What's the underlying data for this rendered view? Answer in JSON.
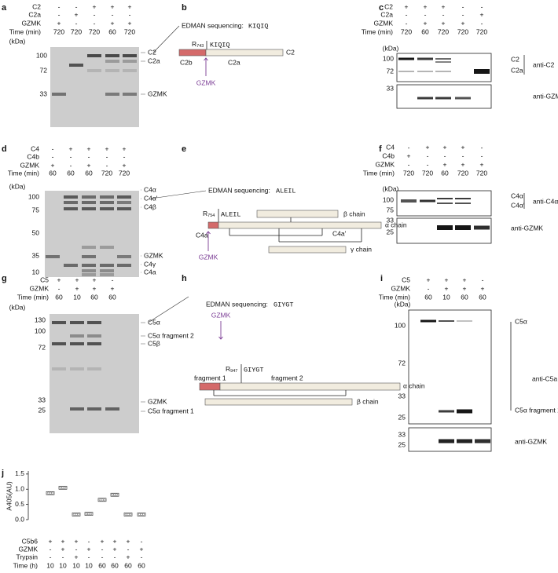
{
  "panels": {
    "a": {
      "letter": "a",
      "rows": [
        {
          "label": "C2",
          "cells": [
            "-",
            "-",
            "+",
            "+",
            "+"
          ]
        },
        {
          "label": "C2a",
          "cells": [
            "-",
            "+",
            "-",
            "-",
            "-"
          ]
        },
        {
          "label": "GZMK",
          "cells": [
            "+",
            "-",
            "-",
            "+",
            "+"
          ]
        },
        {
          "label": "Time (min)",
          "cells": [
            720,
            720,
            720,
            60,
            720
          ]
        }
      ],
      "kda": "(kDa)",
      "markers": [
        100,
        72,
        33
      ],
      "bands": [
        "C2",
        "C2a",
        "GZMK"
      ]
    },
    "b": {
      "letter": "b",
      "edman": "EDMAN sequencing:",
      "seq": "KIQIQ",
      "site": "R",
      "site_num": "743",
      "labels": [
        "C2b",
        "C2a",
        "C2"
      ],
      "enzyme": "GZMK"
    },
    "c": {
      "letter": "c",
      "rows": [
        {
          "label": "C2",
          "cells": [
            "+",
            "+",
            "+",
            "-",
            "-"
          ]
        },
        {
          "label": "C2a",
          "cells": [
            "-",
            "-",
            "-",
            "-",
            "+"
          ]
        },
        {
          "label": "GZMK",
          "cells": [
            "-",
            "+",
            "+",
            "+",
            "-"
          ]
        },
        {
          "label": "Time (min)",
          "cells": [
            720,
            60,
            720,
            720,
            720
          ]
        }
      ],
      "kda": "(kDa)",
      "blots": [
        {
          "markers": [
            100,
            72
          ],
          "bands": [
            "C2",
            "C2a"
          ],
          "antibody": "anti-C2"
        },
        {
          "markers": [
            33
          ],
          "bands": [],
          "antibody": "anti-GZMK"
        }
      ]
    },
    "d": {
      "letter": "d",
      "rows": [
        {
          "label": "C4",
          "cells": [
            "-",
            "+",
            "+",
            "+",
            "+"
          ]
        },
        {
          "label": "C4b",
          "cells": [
            "-",
            "-",
            "-",
            "-",
            "-"
          ]
        },
        {
          "label": "GZMK",
          "cells": [
            "+",
            "-",
            "+",
            "-",
            "+"
          ]
        },
        {
          "label": "Time (min)",
          "cells": [
            60,
            60,
            60,
            720,
            720
          ]
        }
      ],
      "kda": "(kDa)",
      "markers": [
        100,
        75,
        50,
        35,
        10
      ],
      "bands": [
        "C4α",
        "C4α'",
        "C4β",
        "GZMK",
        "C4γ",
        "C4a"
      ]
    },
    "e": {
      "letter": "e",
      "edman": "EDMAN sequencing:",
      "seq": "ALEIL",
      "site": "R",
      "site_num": "754",
      "chains": [
        "β chain",
        "α chain",
        "γ chain"
      ],
      "fragments": [
        "C4a",
        "C4a'"
      ],
      "enzyme": "GZMK"
    },
    "f": {
      "letter": "f",
      "rows": [
        {
          "label": "C4",
          "cells": [
            "-",
            "+",
            "+",
            "+",
            "-"
          ]
        },
        {
          "label": "C4b",
          "cells": [
            "+",
            "-",
            "-",
            "-",
            "-"
          ]
        },
        {
          "label": "GZMK",
          "cells": [
            "-",
            "-",
            "+",
            "+",
            "+"
          ]
        },
        {
          "label": "Time (min)",
          "cells": [
            720,
            720,
            60,
            720,
            720
          ]
        }
      ],
      "kda": "(kDa)",
      "blots": [
        {
          "markers": [
            100,
            75
          ],
          "bands": [
            "C4α",
            "C4α'"
          ],
          "antibody": "anti-C4α"
        },
        {
          "markers": [
            33,
            25
          ],
          "bands": [],
          "antibody": "anti-GZMK"
        }
      ]
    },
    "g": {
      "letter": "g",
      "rows": [
        {
          "label": "C5",
          "cells": [
            "+",
            "+",
            "+",
            "-"
          ]
        },
        {
          "label": "GZMK",
          "cells": [
            "-",
            "+",
            "+",
            "+"
          ]
        },
        {
          "label": "Time (min)",
          "cells": [
            60,
            10,
            60,
            60
          ]
        }
      ],
      "kda": "(kDa)",
      "markers": [
        130,
        100,
        72,
        33,
        25
      ],
      "bands": [
        "C5α",
        "C5α fragment 2",
        "C5β",
        "GZMK",
        "C5α fragment 1"
      ]
    },
    "h": {
      "letter": "h",
      "edman": "EDMAN sequencing:",
      "seq": "GIYGT",
      "enzyme": "GZMK",
      "site": "R",
      "site_num": "947",
      "fragments": [
        "fragment 1",
        "fragment 2"
      ],
      "chains": [
        "α chain",
        "β chain"
      ]
    },
    "i": {
      "letter": "i",
      "rows": [
        {
          "label": "C5",
          "cells": [
            "+",
            "+",
            "+",
            "-"
          ]
        },
        {
          "label": "GZMK",
          "cells": [
            "-",
            "+",
            "+",
            "+"
          ]
        },
        {
          "label": "Time (min)",
          "cells": [
            60,
            10,
            60,
            60
          ]
        }
      ],
      "kda": "(kDa)",
      "blots": [
        {
          "markers": [
            100,
            72,
            33,
            25
          ],
          "bands": [
            "C5α",
            "C5α fragment 1"
          ],
          "antibody": "anti-C5a"
        },
        {
          "markers": [
            33,
            25
          ],
          "bands": [],
          "antibody": "anti-GZMK"
        }
      ]
    },
    "j": {
      "letter": "j",
      "ylabel": "A405(AU)",
      "ylim": [
        0,
        1.6
      ],
      "yticks": [
        {
          "value": 0,
          "label": "0.0"
        },
        {
          "value": 0.5,
          "label": "0.5"
        },
        {
          "value": 1,
          "label": "1.0"
        },
        {
          "value": 1.5,
          "label": "1.5"
        }
      ],
      "values": [
        0.87,
        1.05,
        0.17,
        0.19,
        0.65,
        0.82,
        0.17,
        0.17
      ],
      "rows": [
        {
          "label": "C5b6",
          "cells": [
            "+",
            "+",
            "+",
            "-",
            "+",
            "+",
            "+",
            "-"
          ]
        },
        {
          "label": "GZMK",
          "cells": [
            "-",
            "+",
            "-",
            "+",
            "-",
            "+",
            "-",
            "+"
          ]
        },
        {
          "label": "Trypsin",
          "cells": [
            "-",
            "-",
            "+",
            "-",
            "-",
            "-",
            "+",
            "-"
          ]
        },
        {
          "label": "Time (h)",
          "cells": [
            10,
            10,
            10,
            10,
            60,
            60,
            60,
            60
          ]
        }
      ]
    }
  }
}
